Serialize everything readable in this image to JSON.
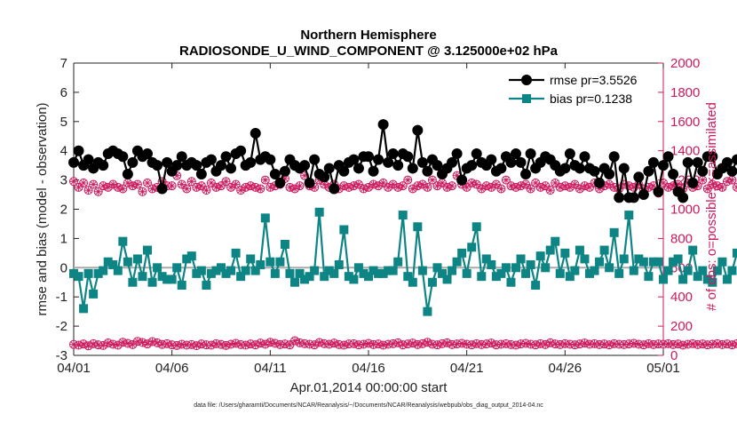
{
  "chart_data": {
    "type": "line",
    "title": "Northern Hemisphere",
    "subtitle": "RADIOSONDE_U_WIND_COMPONENT @ 3.125000e+02 hPa",
    "xlabel": "Apr.01,2014 00:00:00 start",
    "ylabel": "rmse and bias (model - observation)",
    "ylabel_right": "# of obs: o=possible; ×=assimilated",
    "footer": "data file: /Users/gharamti/Documents/NCAR/Reanalysis/~/Documents/NCAR/Reanalysis/webpub/obs_diag_output_2014-04.nc",
    "xlim": [
      0,
      30
    ],
    "ylim": [
      -3,
      7
    ],
    "ylim_right": [
      0,
      2000
    ],
    "xticks": [
      0,
      5,
      10,
      15,
      20,
      25,
      30
    ],
    "xtick_labels": [
      "04/01",
      "04/06",
      "04/11",
      "04/16",
      "04/21",
      "04/26",
      "05/01"
    ],
    "yticks": [
      -3,
      -2,
      -1,
      0,
      1,
      2,
      3,
      4,
      5,
      6,
      7
    ],
    "ytick_labels": [
      "-3",
      "-2",
      "-1",
      "0",
      "1",
      "2",
      "3",
      "4",
      "5",
      "6",
      "7"
    ],
    "yticks_right": [
      0,
      200,
      400,
      600,
      800,
      1000,
      1200,
      1400,
      1600,
      1800,
      2000
    ],
    "ytick_labels_right": [
      "0",
      "200",
      "400",
      "600",
      "800",
      "1000",
      "1200",
      "1400",
      "1600",
      "1800",
      "2000"
    ],
    "x_step": 0.25,
    "zero_line": 0,
    "legend_position": "top-right",
    "series": [
      {
        "name": "rmse pr=3.5526",
        "color": "#000000",
        "marker": "circle",
        "axis": "left",
        "values": [
          3.6,
          4.0,
          3.5,
          3.7,
          3.4,
          3.6,
          3.5,
          3.9,
          4.0,
          3.9,
          3.8,
          3.2,
          3.6,
          4.0,
          3.8,
          3.9,
          3.6,
          3.5,
          2.7,
          3.6,
          3.3,
          3.5,
          3.8,
          3.5,
          3.6,
          3.5,
          3.2,
          3.6,
          3.7,
          3.3,
          3.5,
          3.8,
          3.4,
          3.9,
          4.0,
          3.5,
          3.6,
          4.6,
          3.7,
          3.8,
          3.7,
          3.2,
          2.9,
          3.3,
          3.7,
          3.5,
          3.4,
          3.5,
          2.9,
          3.7,
          3.2,
          3.1,
          3.4,
          2.7,
          3.5,
          3.3,
          3.6,
          3.7,
          3.4,
          3.8,
          3.8,
          3.3,
          3.7,
          4.9,
          3.6,
          3.9,
          3.5,
          3.9,
          3.8,
          3.4,
          4.7,
          3.6,
          3.3,
          3.7,
          3.5,
          3.2,
          3.4,
          3.6,
          3.9,
          3.0,
          3.4,
          3.5,
          3.9,
          3.6,
          3.5,
          3.7,
          3.3,
          3.4,
          3.8,
          3.6,
          3.9,
          3.6,
          3.2,
          3.9,
          3.4,
          3.6,
          3.8,
          3.7,
          3.5,
          3.3,
          3.4,
          3.9,
          3.5,
          3.4,
          3.8,
          3.4,
          3.3,
          2.9,
          3.4,
          3.2,
          3.8,
          2.4,
          3.4,
          2.4,
          2.4,
          3.1,
          2.5,
          3.3,
          3.6,
          2.6,
          3.5,
          3.8,
          3.2,
          2.6,
          2.4,
          3.6,
          2.9,
          3.6,
          3.3,
          3.8,
          3.8,
          3.2,
          3.4,
          3.6,
          3.3,
          3.7,
          3.3,
          3.4,
          3.7,
          3.5,
          3.1,
          3.6,
          3.3,
          3.8,
          3.4,
          3.9,
          3.5,
          3.4,
          3.3,
          3.4,
          2.4,
          3.8,
          3.7,
          3.6,
          3.3,
          3.6,
          3.6,
          4.0,
          2.7,
          3.3,
          3.6,
          3.7,
          3.5,
          3.8,
          3.0,
          3.4,
          3.6,
          3.6,
          3.3,
          4.0,
          4.3,
          4.0,
          3.9,
          4.3,
          4.3,
          4.0,
          3.9,
          3.8,
          3.9,
          4.0,
          3.7,
          3.8,
          3.7,
          3.5
        ]
      },
      {
        "name": "bias pr=0.1238",
        "color": "#0e8585",
        "marker": "square",
        "axis": "left",
        "values": [
          -0.2,
          -0.3,
          -1.4,
          -0.2,
          -0.9,
          -0.2,
          -0.1,
          0.2,
          0.1,
          -0.1,
          0.9,
          0.2,
          -0.5,
          0.3,
          -0.3,
          0.6,
          -0.5,
          0.0,
          -0.3,
          -0.4,
          -0.4,
          0.0,
          -0.6,
          0.3,
          0.4,
          -0.2,
          -0.1,
          -0.6,
          -0.2,
          -0.1,
          0.0,
          -0.2,
          -0.1,
          0.5,
          -0.3,
          -0.1,
          0.3,
          -0.1,
          0.1,
          1.7,
          0.2,
          -0.2,
          0.2,
          0.8,
          -0.2,
          -0.5,
          -0.2,
          -0.4,
          -0.3,
          -0.1,
          1.9,
          -0.3,
          -0.1,
          -0.2,
          0.1,
          1.3,
          -0.3,
          -0.4,
          0.0,
          -0.2,
          -0.3,
          -0.1,
          -0.2,
          -0.2,
          -0.1,
          -0.1,
          0.2,
          1.8,
          -0.3,
          -0.5,
          1.4,
          -0.1,
          -1.5,
          -0.5,
          0.0,
          -0.2,
          -0.4,
          -0.1,
          0.2,
          0.5,
          -0.2,
          0.7,
          1.4,
          -0.3,
          0.3,
          0.1,
          -0.3,
          -0.2,
          0.0,
          -0.5,
          0.0,
          0.3,
          -0.2,
          0.1,
          -0.6,
          0.4,
          0.0,
          0.6,
          0.9,
          -0.2,
          0.5,
          -0.3,
          -0.1,
          0.6,
          0.3,
          -0.2,
          -0.1,
          0.2,
          0.6,
          0.0,
          1.2,
          -0.2,
          0.3,
          1.8,
          -0.1,
          0.3,
          0.2,
          -0.3,
          0.2,
          0.2,
          -0.4,
          -0.1,
          0.2,
          0.3,
          -0.4,
          -0.1,
          0.6,
          -0.3,
          -0.1,
          -0.4,
          -0.5,
          -0.1,
          0.2,
          -0.4,
          -0.1,
          0.5,
          0.0,
          -0.4,
          -0.1,
          0.5,
          0.0,
          -0.4,
          -0.3,
          -0.4,
          -0.6,
          0.0,
          -0.1,
          -0.6,
          0.1,
          -0.4,
          0.0,
          0.3,
          -0.2,
          -0.2,
          0.8,
          0.5,
          -0.2,
          0.8,
          0.4,
          0.0,
          0.3,
          -0.1,
          0.2,
          0.7,
          0.0,
          -0.4,
          0.2,
          0.1,
          0.5,
          -0.5,
          0.3,
          0.1,
          -0.2,
          -0.3,
          -0.1,
          -0.4,
          0.0,
          0.1,
          0.5,
          -0.3,
          0.1,
          -0.1,
          1.0,
          2.3,
          0.0,
          0.7,
          -0.1,
          0.0,
          2.1,
          0.7,
          0.4,
          1.0,
          1.0,
          0.3,
          -0.2,
          0.1,
          -0.1
        ]
      },
      {
        "name": "possible obs",
        "color": "#cc1a5f",
        "marker": "circle-x",
        "axis": "right",
        "values": [
          1190,
          1150,
          1180,
          1130,
          1170,
          1120,
          1160,
          1150,
          1170,
          1150,
          1140,
          1180,
          1160,
          1170,
          1120,
          1180,
          1140,
          1150,
          1190,
          1160,
          1160,
          1230,
          1170,
          1140,
          1190,
          1150,
          1160,
          1130,
          1180,
          1150,
          1160,
          1190,
          1150,
          1170,
          1130,
          1150,
          1160,
          1150,
          1140,
          1200,
          1150,
          1160,
          1170,
          1210,
          1150,
          1140,
          1160,
          1230,
          1160,
          1150,
          1200,
          1170,
          1150,
          1170,
          1140,
          1160,
          1150,
          1160,
          1170,
          1140,
          1150,
          1170,
          1160,
          1180,
          1150,
          1170,
          1150,
          1160,
          1200,
          1140,
          1160,
          1170,
          1150,
          1200,
          1160,
          1180,
          1150,
          1160,
          1230,
          1170,
          1150,
          1180,
          1170,
          1140,
          1160,
          1150,
          1170,
          1140,
          1200,
          1160,
          1150,
          1160,
          1170,
          1140,
          1180,
          1150,
          1160,
          1130,
          1180,
          1150,
          1160,
          1150,
          1170,
          1140,
          1160,
          1150,
          1180,
          1140,
          1160,
          1170,
          1150,
          1140,
          1170,
          1160,
          1150,
          1170,
          1140,
          1150,
          1160,
          1110,
          1180,
          1150,
          1160,
          1170,
          1140,
          1180,
          1150,
          1160,
          1200,
          1140,
          1170,
          1160,
          1150,
          1190,
          1200,
          1150,
          1160,
          1170,
          1150,
          1200,
          1160,
          1150,
          1190,
          1170,
          1150,
          1220,
          1160,
          1150,
          1170,
          1150,
          1180,
          1140,
          1160,
          1170,
          1150,
          1140,
          1160,
          1150,
          1170,
          1160,
          1190,
          1140,
          1150,
          1160,
          1170,
          1150,
          1130,
          1160,
          1190,
          1150,
          1170,
          1160,
          1180,
          1150,
          1140,
          1160,
          1150,
          1170,
          1160,
          1160,
          1180,
          1190,
          1150,
          1200,
          1170,
          1160,
          1180,
          1190,
          1200,
          1170,
          1160,
          1180,
          1190,
          1200
        ]
      },
      {
        "name": "assimilated obs",
        "color": "#cc1a5f",
        "marker": "circle-x",
        "axis": "right",
        "values": [
          75,
          70,
          78,
          65,
          80,
          72,
          68,
          85,
          76,
          70,
          90,
          82,
          74,
          96,
          88,
          78,
          94,
          86,
          75,
          80,
          72,
          68,
          76,
          70,
          74,
          66,
          78,
          72,
          70,
          80,
          75,
          68,
          76,
          82,
          74,
          70,
          78,
          72,
          84,
          76,
          90,
          82,
          74,
          78,
          72,
          100,
          86,
          80,
          76,
          72,
          88,
          80,
          76,
          84,
          74,
          70,
          78,
          80,
          72,
          76,
          82,
          74,
          78,
          70,
          76,
          80,
          86,
          72,
          78,
          84,
          74,
          80,
          90,
          76,
          72,
          80,
          86,
          74,
          78,
          82,
          76,
          72,
          80,
          74,
          78,
          84,
          72,
          76,
          80,
          74,
          70,
          78,
          82,
          76,
          72,
          80,
          74,
          86,
          78,
          74,
          80,
          76,
          72,
          78,
          84,
          76,
          80,
          74,
          78,
          72,
          80,
          76,
          74,
          78,
          82,
          76,
          72,
          80,
          74,
          78,
          76,
          80,
          74,
          78,
          70,
          76,
          80,
          74,
          78,
          72,
          76,
          80,
          74,
          78,
          72,
          80,
          76,
          74,
          78,
          82,
          76,
          72,
          80,
          74,
          78,
          76,
          84,
          78,
          92,
          82,
          98,
          86,
          76,
          84,
          90,
          78,
          82,
          74,
          80,
          76,
          72,
          84,
          80,
          76,
          90,
          82,
          86,
          78,
          94,
          84,
          76,
          88,
          80,
          74,
          86,
          78,
          82,
          76,
          72,
          84,
          80,
          76,
          90,
          82,
          78,
          86,
          80,
          76,
          82,
          78,
          76,
          80,
          74,
          72,
          76,
          70,
          60
        ]
      }
    ]
  }
}
